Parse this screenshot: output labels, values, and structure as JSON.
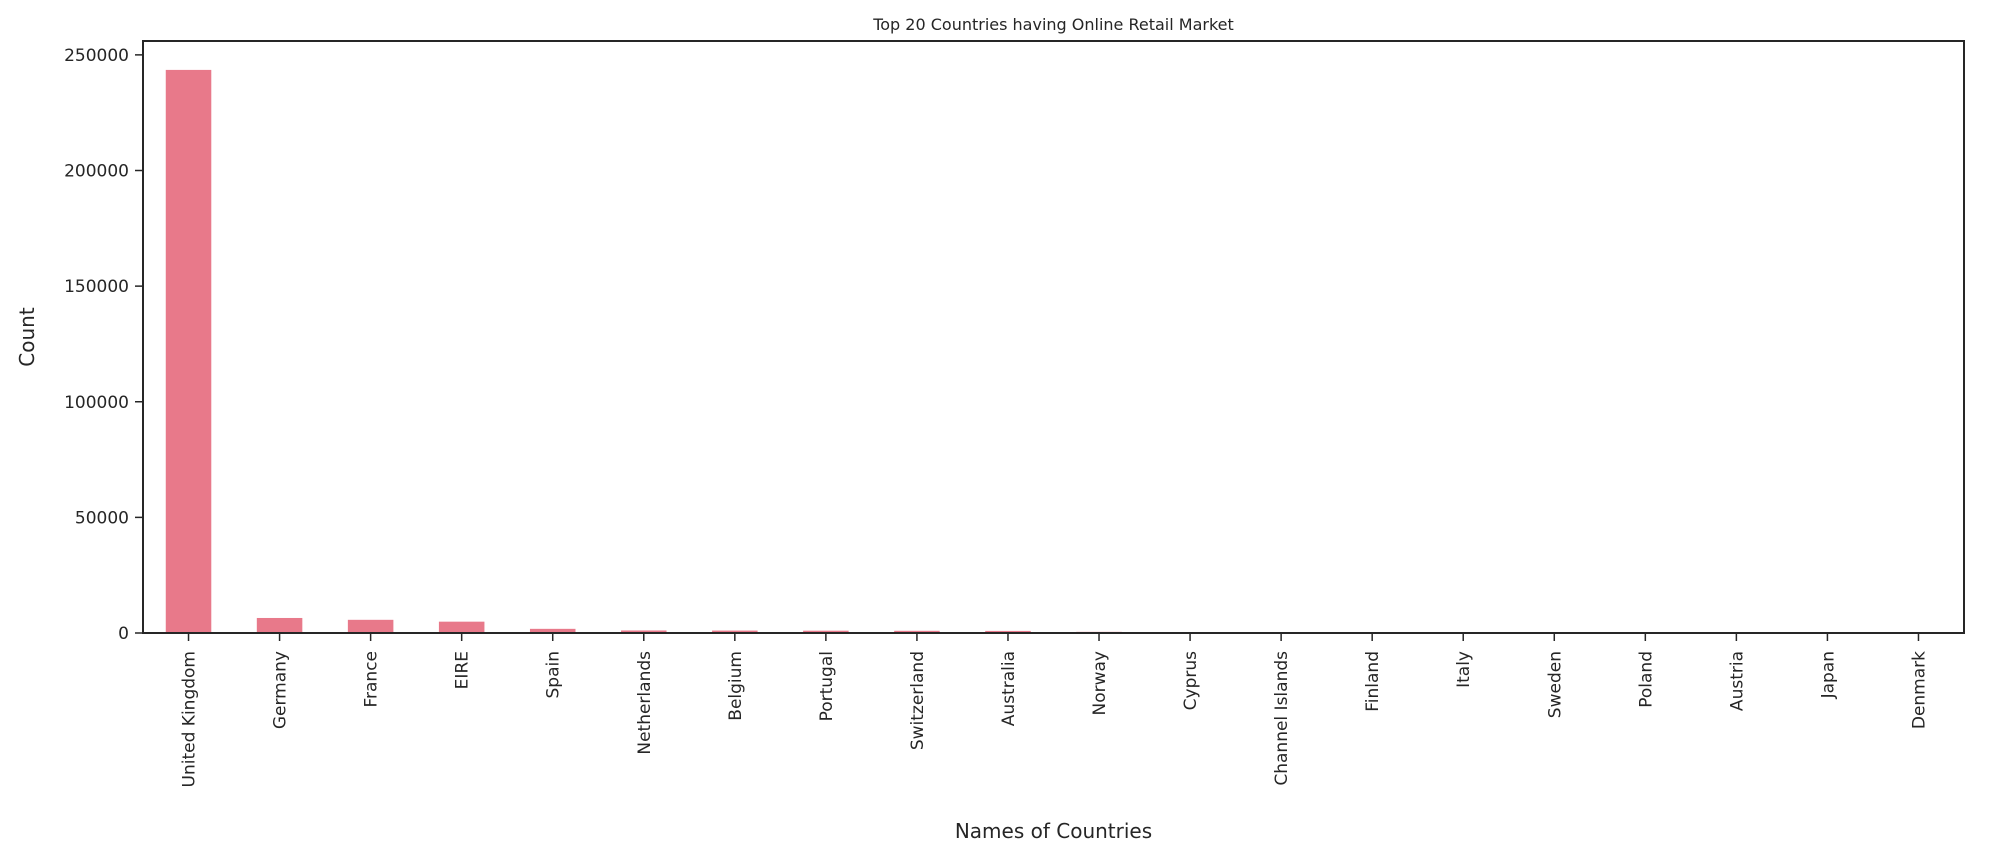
{
  "chart_data": {
    "type": "bar",
    "title": "Top 20 Countries having Online Retail Market",
    "xlabel": "Names of Countries",
    "ylabel": "Count",
    "ylim": [
      0,
      256000
    ],
    "yticks": [
      0,
      50000,
      100000,
      150000,
      200000,
      250000
    ],
    "grid": false,
    "bar_color": "#e8798a",
    "categories": [
      "United Kingdom",
      "Germany",
      "France",
      "EIRE",
      "Spain",
      "Netherlands",
      "Belgium",
      "Portugal",
      "Switzerland",
      "Australia",
      "Norway",
      "Cyprus",
      "Channel Islands",
      "Finland",
      "Italy",
      "Sweden",
      "Poland",
      "Austria",
      "Japan",
      "Denmark"
    ],
    "values": [
      243500,
      6500,
      5700,
      4900,
      1800,
      1100,
      1050,
      1000,
      950,
      900,
      500,
      400,
      380,
      360,
      350,
      340,
      320,
      300,
      280,
      270
    ]
  }
}
